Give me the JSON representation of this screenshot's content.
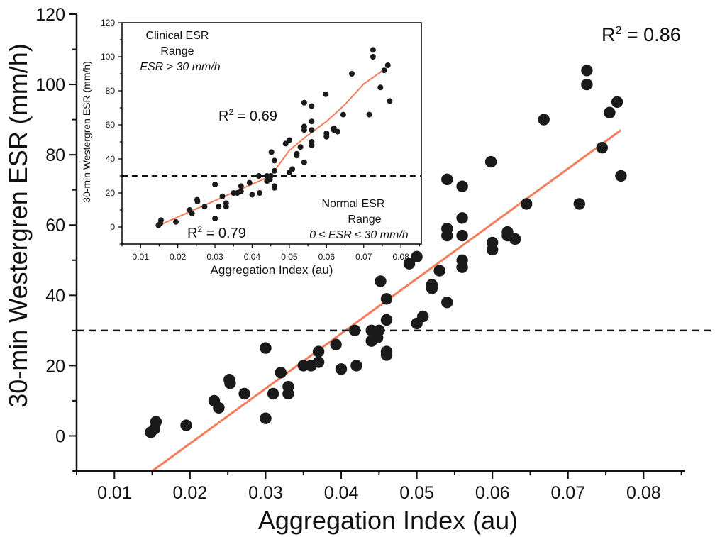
{
  "chart_data": [
    {
      "type": "scatter",
      "xlabel": "Aggregation Index (au)",
      "ylabel": "30-min Westergren ESR (mm/h)",
      "xlim": [
        0.005,
        0.0855
      ],
      "ylim": [
        -10,
        120
      ],
      "xticks": [
        "0.01",
        "0.02",
        "0.03",
        "0.04",
        "0.05",
        "0.06",
        "0.07",
        "0.08"
      ],
      "yticks": [
        "0",
        "20",
        "40",
        "60",
        "80",
        "100",
        "120"
      ],
      "xtick_values": [
        0.01,
        0.02,
        0.03,
        0.04,
        0.05,
        0.06,
        0.07,
        0.08
      ],
      "ytick_values": [
        0,
        20,
        40,
        60,
        80,
        100,
        120
      ],
      "threshold_y": 30,
      "r2_label": "R",
      "r2_sup": "2",
      "r2_value": " = 0.86",
      "marker_color": "#1a1a1a",
      "fit_color": "#f47c5a",
      "fit_line": [
        [
          0.015,
          -10
        ],
        [
          0.077,
          87
        ]
      ],
      "points": [
        [
          0.0148,
          1
        ],
        [
          0.0153,
          2
        ],
        [
          0.0155,
          4
        ],
        [
          0.0195,
          3
        ],
        [
          0.0232,
          10
        ],
        [
          0.0238,
          8
        ],
        [
          0.0252,
          16
        ],
        [
          0.0253,
          15
        ],
        [
          0.0272,
          12
        ],
        [
          0.03,
          25
        ],
        [
          0.03,
          5
        ],
        [
          0.031,
          12
        ],
        [
          0.032,
          18
        ],
        [
          0.033,
          14
        ],
        [
          0.033,
          12
        ],
        [
          0.035,
          20
        ],
        [
          0.036,
          20
        ],
        [
          0.037,
          24
        ],
        [
          0.037,
          21
        ],
        [
          0.0393,
          26
        ],
        [
          0.04,
          19
        ],
        [
          0.0418,
          30
        ],
        [
          0.042,
          20
        ],
        [
          0.044,
          30
        ],
        [
          0.044,
          27
        ],
        [
          0.0448,
          28
        ],
        [
          0.045,
          30
        ],
        [
          0.0452,
          44
        ],
        [
          0.046,
          39
        ],
        [
          0.046,
          33
        ],
        [
          0.046,
          24
        ],
        [
          0.046,
          23
        ],
        [
          0.049,
          49
        ],
        [
          0.05,
          51
        ],
        [
          0.05,
          32
        ],
        [
          0.0508,
          34
        ],
        [
          0.052,
          43
        ],
        [
          0.052,
          42
        ],
        [
          0.053,
          47
        ],
        [
          0.054,
          73
        ],
        [
          0.054,
          59
        ],
        [
          0.054,
          57
        ],
        [
          0.054,
          38
        ],
        [
          0.056,
          71
        ],
        [
          0.056,
          62
        ],
        [
          0.056,
          57
        ],
        [
          0.056,
          50
        ],
        [
          0.056,
          48
        ],
        [
          0.0598,
          78
        ],
        [
          0.06,
          55
        ],
        [
          0.06,
          53
        ],
        [
          0.062,
          58
        ],
        [
          0.062,
          57
        ],
        [
          0.063,
          56
        ],
        [
          0.0645,
          66
        ],
        [
          0.0668,
          90
        ],
        [
          0.0715,
          66
        ],
        [
          0.0725,
          104
        ],
        [
          0.0725,
          100
        ],
        [
          0.0745,
          82
        ],
        [
          0.0755,
          92
        ],
        [
          0.0765,
          95
        ],
        [
          0.077,
          74
        ]
      ]
    },
    {
      "type": "scatter",
      "xlabel": "Aggregation Index (au)",
      "ylabel": "30-min Westergren ESR (mm/h)",
      "xlim": [
        0.005,
        0.0855
      ],
      "ylim": [
        -10,
        120
      ],
      "xticks": [
        "0.01",
        "0.02",
        "0.03",
        "0.04",
        "0.05",
        "0.06",
        "0.07",
        "0.08"
      ],
      "yticks": [
        "0",
        "20",
        "40",
        "60",
        "80",
        "100",
        "120"
      ],
      "xtick_values": [
        0.01,
        0.02,
        0.03,
        0.04,
        0.05,
        0.06,
        0.07,
        0.08
      ],
      "ytick_values": [
        0,
        20,
        40,
        60,
        80,
        100,
        120
      ],
      "threshold_y": 30,
      "upper_range": {
        "line1": "Clinical ESR",
        "line2": "Range",
        "line3": "ESR > 30 mm/h"
      },
      "lower_range": {
        "line1": "Normal ESR",
        "line2": "Range",
        "line3": "0 ≤ ESR ≤ 30 mm/h"
      },
      "r2_upper": {
        "label": "R",
        "sup": "2",
        "value": " = 0.69"
      },
      "r2_lower": {
        "label": "R",
        "sup": "2",
        "value": " = 0.79"
      },
      "marker_color": "#1a1a1a",
      "fit_color": "#f47c5a",
      "fit_lower": [
        [
          0.015,
          1
        ],
        [
          0.045,
          30
        ]
      ],
      "fit_upper": [
        [
          0.045,
          30
        ],
        [
          0.05,
          45
        ],
        [
          0.055,
          54
        ],
        [
          0.06,
          62
        ],
        [
          0.065,
          72
        ],
        [
          0.07,
          84
        ],
        [
          0.0765,
          94
        ]
      ],
      "points": [
        [
          0.0148,
          1
        ],
        [
          0.0153,
          2
        ],
        [
          0.0155,
          4
        ],
        [
          0.0195,
          3
        ],
        [
          0.0232,
          10
        ],
        [
          0.0238,
          8
        ],
        [
          0.0252,
          16
        ],
        [
          0.0253,
          15
        ],
        [
          0.0272,
          12
        ],
        [
          0.03,
          25
        ],
        [
          0.03,
          5
        ],
        [
          0.031,
          12
        ],
        [
          0.032,
          18
        ],
        [
          0.033,
          14
        ],
        [
          0.033,
          12
        ],
        [
          0.035,
          20
        ],
        [
          0.036,
          20
        ],
        [
          0.037,
          24
        ],
        [
          0.037,
          21
        ],
        [
          0.0393,
          26
        ],
        [
          0.04,
          19
        ],
        [
          0.0418,
          30
        ],
        [
          0.042,
          20
        ],
        [
          0.044,
          30
        ],
        [
          0.044,
          27
        ],
        [
          0.0448,
          28
        ],
        [
          0.045,
          30
        ],
        [
          0.0452,
          44
        ],
        [
          0.046,
          39
        ],
        [
          0.046,
          33
        ],
        [
          0.046,
          24
        ],
        [
          0.046,
          23
        ],
        [
          0.049,
          49
        ],
        [
          0.05,
          51
        ],
        [
          0.05,
          32
        ],
        [
          0.0508,
          34
        ],
        [
          0.052,
          43
        ],
        [
          0.052,
          42
        ],
        [
          0.053,
          47
        ],
        [
          0.054,
          73
        ],
        [
          0.054,
          59
        ],
        [
          0.054,
          57
        ],
        [
          0.054,
          38
        ],
        [
          0.056,
          71
        ],
        [
          0.056,
          62
        ],
        [
          0.056,
          57
        ],
        [
          0.056,
          50
        ],
        [
          0.056,
          48
        ],
        [
          0.0598,
          78
        ],
        [
          0.06,
          55
        ],
        [
          0.06,
          53
        ],
        [
          0.062,
          58
        ],
        [
          0.062,
          57
        ],
        [
          0.063,
          56
        ],
        [
          0.0645,
          66
        ],
        [
          0.0668,
          90
        ],
        [
          0.0715,
          66
        ],
        [
          0.0725,
          104
        ],
        [
          0.0725,
          100
        ],
        [
          0.0745,
          82
        ],
        [
          0.0755,
          92
        ],
        [
          0.0765,
          95
        ],
        [
          0.077,
          74
        ]
      ]
    }
  ]
}
